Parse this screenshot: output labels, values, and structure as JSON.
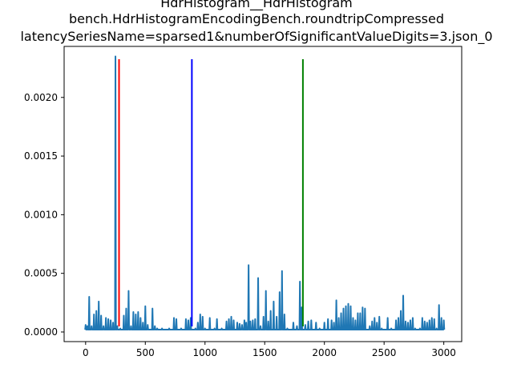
{
  "chart_data": {
    "type": "line",
    "title_lines": [
      "HdrHistogram__HdrHistogram",
      "bench.HdrHistogramEncodingBench.roundtripCompressed",
      "latencySeriesName=sparsed1&numberOfSignificantValueDigits=3.json_0"
    ],
    "xlabel": "",
    "ylabel": "",
    "xlim": [
      -180,
      3150
    ],
    "ylim": [
      -8.2e-05,
      0.002435
    ],
    "x_ticks": [
      0,
      500,
      1000,
      1500,
      2000,
      2500,
      3000
    ],
    "x_tick_labels": [
      "0",
      "500",
      "1000",
      "1500",
      "2000",
      "2500",
      "3000"
    ],
    "y_ticks": [
      0.0,
      0.0005,
      0.001,
      0.0015,
      0.002
    ],
    "y_tick_labels": [
      "0.0000",
      "0.0005",
      "0.0010",
      "0.0015",
      "0.0020"
    ],
    "grid": false,
    "series": [
      {
        "color": "#1f77b4",
        "spikes": [
          [
            0,
            6e-05
          ],
          [
            15,
            5e-05
          ],
          [
            30,
            0.0003
          ],
          [
            50,
            5e-05
          ],
          [
            70,
            0.00015
          ],
          [
            90,
            0.00018
          ],
          [
            110,
            0.00026
          ],
          [
            130,
            0.00014
          ],
          [
            150,
            5e-05
          ],
          [
            170,
            0.00012
          ],
          [
            190,
            0.00011
          ],
          [
            210,
            0.0001
          ],
          [
            230,
            8e-05
          ],
          [
            250,
            0.00235
          ],
          [
            265,
            5e-05
          ],
          [
            290,
            3e-05
          ],
          [
            320,
            0.00014
          ],
          [
            340,
            0.0002
          ],
          [
            360,
            0.00035
          ],
          [
            380,
            5e-05
          ],
          [
            400,
            0.00017
          ],
          [
            420,
            0.00015
          ],
          [
            440,
            0.00017
          ],
          [
            460,
            0.00012
          ],
          [
            480,
            8e-05
          ],
          [
            500,
            0.00022
          ],
          [
            520,
            6e-05
          ],
          [
            560,
            0.0002
          ],
          [
            580,
            5e-05
          ],
          [
            600,
            3e-05
          ],
          [
            640,
            3e-05
          ],
          [
            700,
            3e-05
          ],
          [
            740,
            0.00012
          ],
          [
            760,
            0.00011
          ],
          [
            800,
            3e-05
          ],
          [
            840,
            0.00011
          ],
          [
            860,
            0.0001
          ],
          [
            880,
            0.00012
          ],
          [
            920,
            3e-05
          ],
          [
            940,
            8e-05
          ],
          [
            960,
            0.00015
          ],
          [
            980,
            0.00013
          ],
          [
            1000,
            3e-05
          ],
          [
            1040,
            0.00012
          ],
          [
            1080,
            3e-05
          ],
          [
            1100,
            0.00011
          ],
          [
            1140,
            3e-05
          ],
          [
            1180,
            9e-05
          ],
          [
            1200,
            0.00011
          ],
          [
            1220,
            0.00013
          ],
          [
            1240,
            0.0001
          ],
          [
            1270,
            8e-05
          ],
          [
            1290,
            7e-05
          ],
          [
            1310,
            6e-05
          ],
          [
            1330,
            0.0001
          ],
          [
            1345,
            8e-05
          ],
          [
            1365,
            0.00057
          ],
          [
            1380,
            9e-05
          ],
          [
            1400,
            0.0001
          ],
          [
            1420,
            0.00011
          ],
          [
            1445,
            0.00046
          ],
          [
            1465,
            5e-05
          ],
          [
            1490,
            0.00013
          ],
          [
            1510,
            0.00035
          ],
          [
            1530,
            9e-05
          ],
          [
            1550,
            0.00018
          ],
          [
            1575,
            0.00026
          ],
          [
            1600,
            0.00013
          ],
          [
            1625,
            0.00034
          ],
          [
            1645,
            0.00052
          ],
          [
            1665,
            0.00015
          ],
          [
            1690,
            3e-05
          ],
          [
            1740,
            8e-05
          ],
          [
            1770,
            5e-05
          ],
          [
            1795,
            0.00043
          ],
          [
            1810,
            0.00021
          ],
          [
            1840,
            6e-05
          ],
          [
            1865,
            9e-05
          ],
          [
            1890,
            0.0001
          ],
          [
            1930,
            8e-05
          ],
          [
            1960,
            3e-05
          ],
          [
            2000,
            8e-05
          ],
          [
            2030,
            0.00011
          ],
          [
            2060,
            0.0001
          ],
          [
            2080,
            8e-05
          ],
          [
            2100,
            0.00027
          ],
          [
            2120,
            0.00012
          ],
          [
            2140,
            0.00016
          ],
          [
            2160,
            0.0002
          ],
          [
            2180,
            0.00022
          ],
          [
            2200,
            0.00024
          ],
          [
            2220,
            0.00022
          ],
          [
            2240,
            0.00012
          ],
          [
            2260,
            0.0001
          ],
          [
            2280,
            0.00016
          ],
          [
            2300,
            0.00016
          ],
          [
            2320,
            0.00021
          ],
          [
            2340,
            0.0002
          ],
          [
            2380,
            5e-05
          ],
          [
            2400,
            9e-05
          ],
          [
            2420,
            0.00012
          ],
          [
            2440,
            8e-05
          ],
          [
            2460,
            0.00013
          ],
          [
            2480,
            3e-05
          ],
          [
            2530,
            0.00012
          ],
          [
            2560,
            3e-05
          ],
          [
            2600,
            0.0001
          ],
          [
            2620,
            0.00012
          ],
          [
            2640,
            0.00018
          ],
          [
            2660,
            0.00031
          ],
          [
            2680,
            9e-05
          ],
          [
            2700,
            8e-05
          ],
          [
            2720,
            0.0001
          ],
          [
            2740,
            0.00012
          ],
          [
            2760,
            3e-05
          ],
          [
            2800,
            3e-05
          ],
          [
            2820,
            0.00012
          ],
          [
            2840,
            9e-05
          ],
          [
            2860,
            8e-05
          ],
          [
            2880,
            0.0001
          ],
          [
            2900,
            0.00012
          ],
          [
            2920,
            0.00011
          ],
          [
            2940,
            3e-05
          ],
          [
            2960,
            0.00023
          ],
          [
            2980,
            0.00012
          ],
          [
            3000,
            0.0001
          ]
        ]
      }
    ],
    "vlines": [
      {
        "x": 280,
        "color": "#ff0000"
      },
      {
        "x": 890,
        "color": "#0000ff"
      },
      {
        "x": 1820,
        "color": "#008000"
      }
    ]
  }
}
